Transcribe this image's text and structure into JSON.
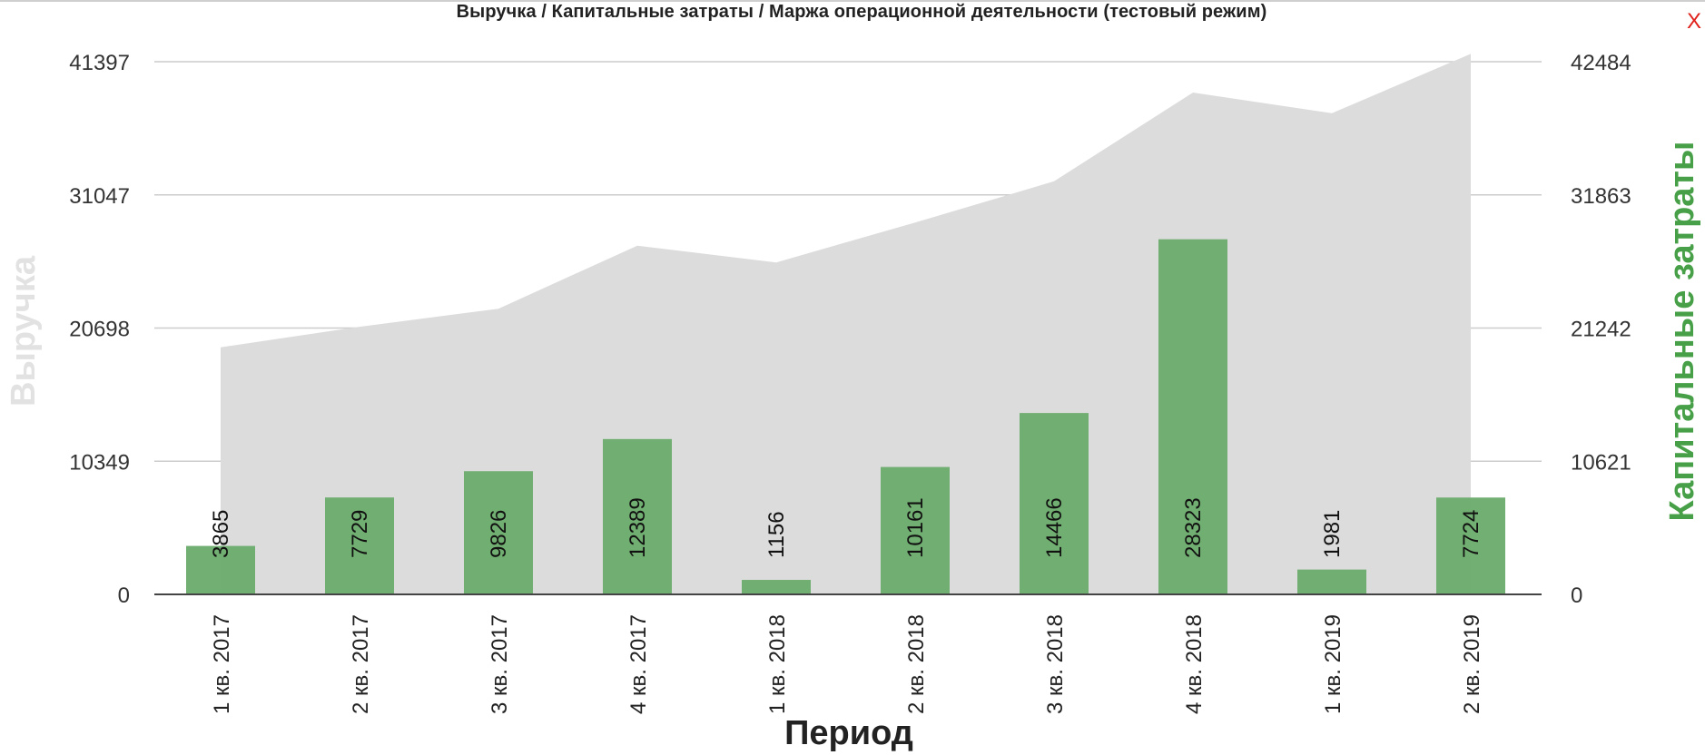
{
  "close_label": "X",
  "chart_data": {
    "type": "bar",
    "title": "Выручка / Капитальные затраты / Маржа операционной деятельности (тестовый режим)",
    "xlabel": "Период",
    "categories": [
      "1 кв. 2017",
      "2 кв. 2017",
      "3 кв. 2017",
      "4 кв. 2017",
      "1 кв. 2018",
      "2 кв. 2018",
      "3 кв. 2018",
      "4 кв. 2018",
      "1 кв. 2019",
      "2 кв. 2019"
    ],
    "left_axis": {
      "label": "Выручка",
      "ylim": [
        0,
        41397
      ],
      "ticks": [
        0,
        10349,
        20698,
        31047,
        41397
      ]
    },
    "right_axis": {
      "label": "Капитальные затраты",
      "ylim": [
        0,
        42484
      ],
      "ticks": [
        0,
        10621,
        21242,
        31863,
        42484
      ]
    },
    "series": [
      {
        "name": "Выручка",
        "type": "area",
        "axis": "left",
        "color": "#dcdcdc",
        "values": [
          19200,
          20800,
          22200,
          27100,
          25800,
          28900,
          32100,
          39000,
          37400,
          42000
        ]
      },
      {
        "name": "Капитальные затраты",
        "type": "bar",
        "axis": "right",
        "color": "#6aab6a",
        "values": [
          3865,
          7729,
          9826,
          12389,
          1156,
          10161,
          14466,
          28323,
          1981,
          7724
        ],
        "data_labels": [
          "3865",
          "7729",
          "9826",
          "12389",
          "1156",
          "10161",
          "14466",
          "28323",
          "1981",
          "7724"
        ]
      }
    ],
    "grid": true,
    "legend": "none"
  }
}
